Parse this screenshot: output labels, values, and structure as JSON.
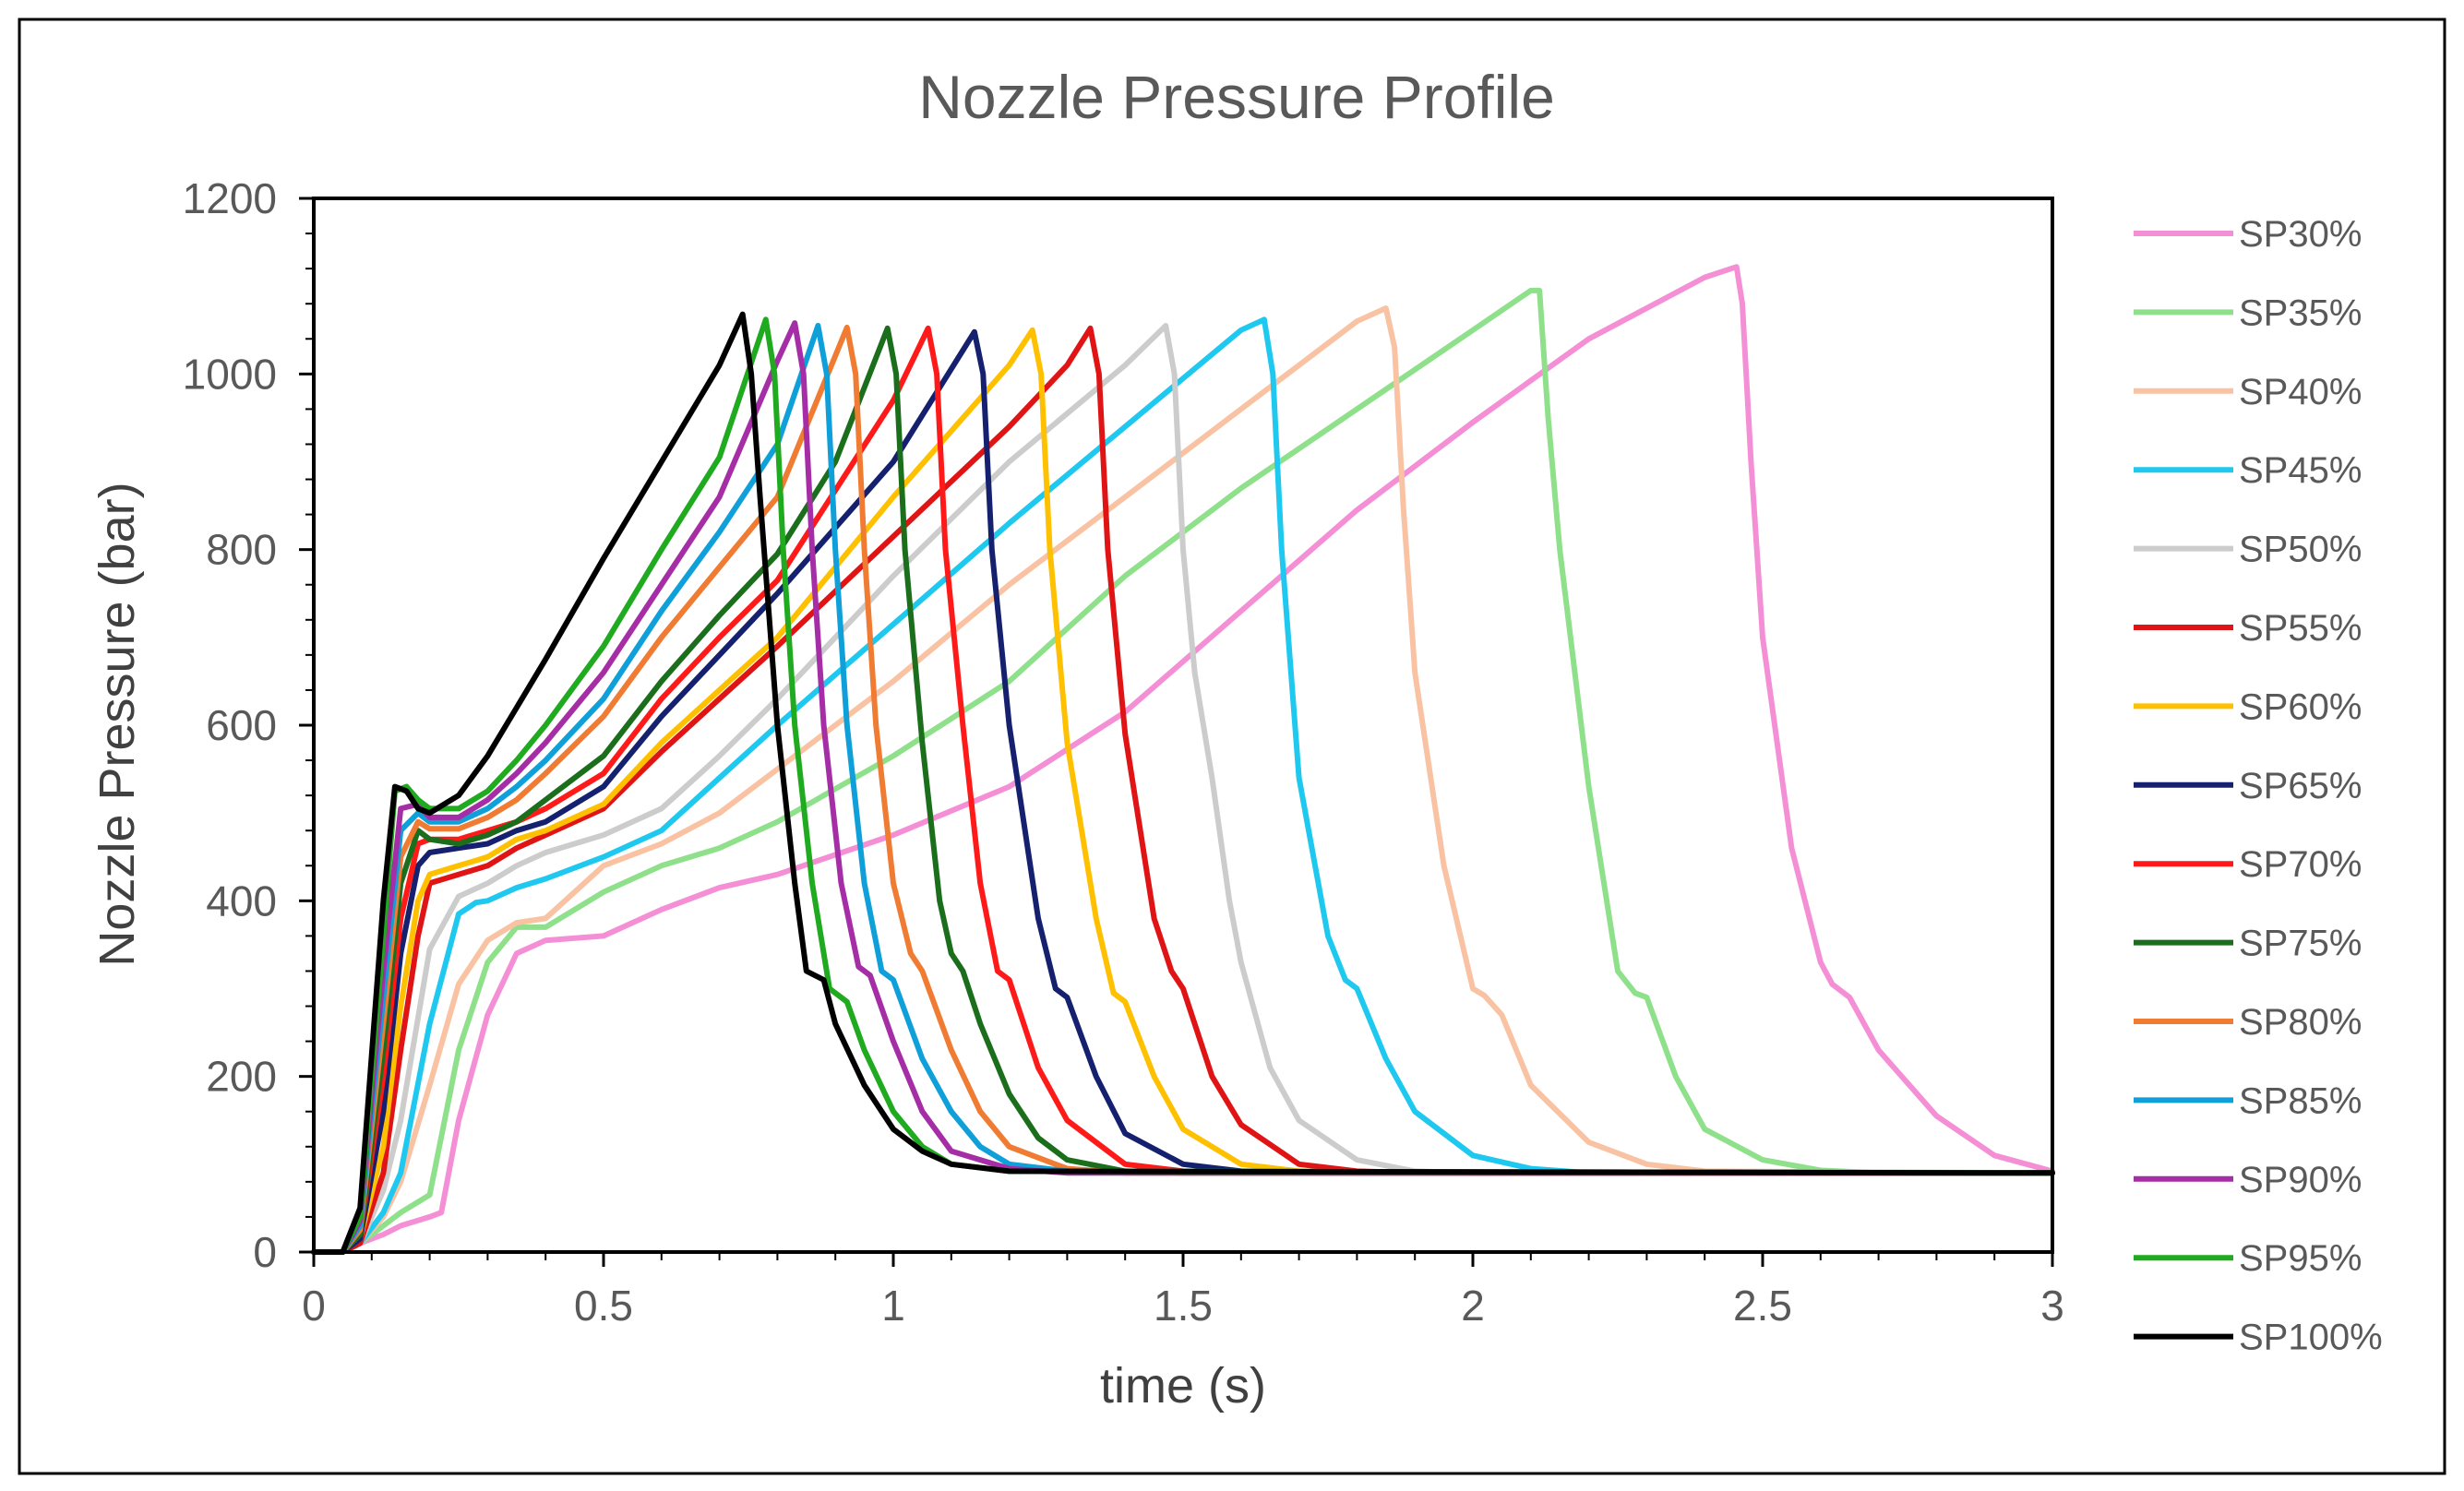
{
  "chart_data": {
    "type": "line",
    "title": "Nozzle Pressure Profile",
    "xlabel": "time (s)",
    "ylabel": "Nozzle Pressure (bar)",
    "xlim": [
      0,
      3
    ],
    "ylim": [
      0,
      1200
    ],
    "xticks": [
      0,
      0.5,
      1,
      1.5,
      2,
      2.5,
      3
    ],
    "xtick_labels": [
      "0",
      "0.5",
      "1",
      "1.5",
      "2",
      "2.5",
      "3"
    ],
    "yticks": [
      0,
      200,
      400,
      600,
      800,
      1000,
      1200
    ],
    "ytick_labels": [
      "0",
      "200",
      "400",
      "600",
      "800",
      "1000",
      "1200"
    ],
    "grid": false,
    "legend_position": "right",
    "series": [
      {
        "name": "SP30%",
        "color": "#f48fd6",
        "x": [
          0.0,
          0.05,
          0.08,
          0.12,
          0.15,
          0.2,
          0.22,
          0.25,
          0.3,
          0.35,
          0.4,
          0.5,
          0.6,
          0.7,
          0.8,
          1.0,
          1.2,
          1.4,
          1.6,
          1.8,
          2.0,
          2.2,
          2.4,
          2.455,
          2.465,
          2.48,
          2.5,
          2.55,
          2.6,
          2.62,
          2.65,
          2.7,
          2.8,
          2.9,
          3.0
        ],
        "y": [
          0,
          0,
          10,
          20,
          30,
          40,
          45,
          150,
          270,
          340,
          355,
          360,
          390,
          415,
          430,
          475,
          530,
          615,
          730,
          845,
          945,
          1040,
          1110,
          1122,
          1080,
          900,
          700,
          460,
          330,
          305,
          290,
          230,
          155,
          110,
          92
        ]
      },
      {
        "name": "SP35%",
        "color": "#8fe08a",
        "x": [
          0.0,
          0.05,
          0.08,
          0.12,
          0.15,
          0.2,
          0.25,
          0.3,
          0.35,
          0.4,
          0.5,
          0.6,
          0.7,
          0.8,
          1.0,
          1.2,
          1.4,
          1.6,
          1.8,
          2.0,
          2.1,
          2.115,
          2.13,
          2.15,
          2.2,
          2.25,
          2.28,
          2.3,
          2.35,
          2.4,
          2.5,
          2.6,
          2.7,
          3.0
        ],
        "y": [
          0,
          0,
          10,
          30,
          45,
          65,
          230,
          330,
          370,
          370,
          410,
          440,
          460,
          490,
          565,
          650,
          770,
          870,
          960,
          1050,
          1095,
          1095,
          950,
          800,
          530,
          320,
          295,
          290,
          200,
          140,
          105,
          93,
          90,
          90
        ]
      },
      {
        "name": "SP40%",
        "color": "#f9c3a3",
        "x": [
          0.0,
          0.05,
          0.08,
          0.12,
          0.15,
          0.2,
          0.25,
          0.3,
          0.35,
          0.4,
          0.5,
          0.6,
          0.7,
          0.8,
          1.0,
          1.2,
          1.4,
          1.6,
          1.8,
          1.85,
          1.865,
          1.88,
          1.9,
          1.95,
          2.0,
          2.02,
          2.05,
          2.1,
          2.2,
          2.3,
          2.4,
          3.0
        ],
        "y": [
          0,
          0,
          10,
          40,
          80,
          190,
          305,
          355,
          375,
          380,
          440,
          465,
          500,
          550,
          650,
          760,
          860,
          960,
          1060,
          1075,
          1030,
          850,
          660,
          440,
          300,
          292,
          270,
          190,
          125,
          100,
          92,
          90
        ]
      },
      {
        "name": "SP45%",
        "color": "#1ec8ef",
        "x": [
          0.0,
          0.05,
          0.08,
          0.12,
          0.15,
          0.2,
          0.25,
          0.28,
          0.3,
          0.35,
          0.4,
          0.5,
          0.6,
          0.7,
          0.8,
          1.0,
          1.2,
          1.4,
          1.6,
          1.64,
          1.655,
          1.67,
          1.7,
          1.75,
          1.78,
          1.8,
          1.85,
          1.9,
          2.0,
          2.1,
          2.2,
          3.0
        ],
        "y": [
          0,
          0,
          10,
          45,
          90,
          260,
          385,
          398,
          400,
          415,
          425,
          450,
          480,
          540,
          600,
          715,
          830,
          940,
          1050,
          1062,
          1000,
          800,
          540,
          360,
          310,
          300,
          220,
          160,
          110,
          95,
          90,
          90
        ]
      },
      {
        "name": "SP50%",
        "color": "#cccccc",
        "x": [
          0.0,
          0.05,
          0.08,
          0.12,
          0.15,
          0.2,
          0.25,
          0.3,
          0.35,
          0.4,
          0.5,
          0.6,
          0.7,
          0.8,
          1.0,
          1.2,
          1.4,
          1.47,
          1.485,
          1.5,
          1.52,
          1.55,
          1.58,
          1.6,
          1.65,
          1.7,
          1.8,
          1.9,
          2.0,
          3.0
        ],
        "y": [
          0,
          0,
          10,
          70,
          150,
          345,
          405,
          420,
          440,
          455,
          475,
          505,
          565,
          630,
          770,
          900,
          1010,
          1055,
          1000,
          800,
          660,
          540,
          400,
          330,
          210,
          150,
          105,
          92,
          90,
          90
        ]
      },
      {
        "name": "SP55%",
        "color": "#e01414",
        "x": [
          0.0,
          0.05,
          0.08,
          0.12,
          0.15,
          0.18,
          0.2,
          0.25,
          0.3,
          0.35,
          0.4,
          0.5,
          0.6,
          0.7,
          0.8,
          1.0,
          1.2,
          1.3,
          1.34,
          1.355,
          1.37,
          1.4,
          1.45,
          1.48,
          1.5,
          1.55,
          1.6,
          1.7,
          1.8,
          1.9,
          3.0
        ],
        "y": [
          0,
          0,
          10,
          90,
          230,
          360,
          420,
          430,
          440,
          460,
          475,
          505,
          570,
          630,
          690,
          815,
          940,
          1010,
          1052,
          1000,
          800,
          590,
          380,
          320,
          300,
          200,
          145,
          100,
          92,
          90,
          90
        ]
      },
      {
        "name": "SP60%",
        "color": "#ffc000",
        "x": [
          0.0,
          0.05,
          0.08,
          0.12,
          0.15,
          0.18,
          0.2,
          0.25,
          0.3,
          0.35,
          0.4,
          0.5,
          0.6,
          0.7,
          0.8,
          1.0,
          1.2,
          1.24,
          1.255,
          1.27,
          1.3,
          1.35,
          1.38,
          1.4,
          1.45,
          1.5,
          1.6,
          1.7,
          1.8,
          3.0
        ],
        "y": [
          0,
          0,
          15,
          120,
          280,
          400,
          430,
          440,
          450,
          470,
          480,
          510,
          580,
          640,
          700,
          860,
          1010,
          1050,
          1000,
          800,
          580,
          380,
          295,
          285,
          200,
          140,
          100,
          92,
          90,
          90
        ]
      },
      {
        "name": "SP65%",
        "color": "#15206e",
        "x": [
          0.0,
          0.05,
          0.08,
          0.12,
          0.15,
          0.18,
          0.2,
          0.25,
          0.3,
          0.35,
          0.4,
          0.5,
          0.6,
          0.7,
          0.8,
          1.0,
          1.14,
          1.155,
          1.17,
          1.2,
          1.25,
          1.28,
          1.3,
          1.35,
          1.4,
          1.5,
          1.6,
          1.7,
          3.0
        ],
        "y": [
          0,
          0,
          15,
          160,
          340,
          440,
          455,
          460,
          465,
          480,
          490,
          530,
          610,
          680,
          750,
          900,
          1048,
          1000,
          800,
          600,
          380,
          300,
          290,
          200,
          135,
          100,
          92,
          90,
          90
        ]
      },
      {
        "name": "SP70%",
        "color": "#ff1a1a",
        "x": [
          0.0,
          0.05,
          0.08,
          0.12,
          0.15,
          0.18,
          0.2,
          0.25,
          0.3,
          0.35,
          0.4,
          0.5,
          0.6,
          0.7,
          0.8,
          1.0,
          1.06,
          1.075,
          1.09,
          1.12,
          1.15,
          1.18,
          1.2,
          1.25,
          1.3,
          1.4,
          1.5,
          1.6,
          3.0
        ],
        "y": [
          0,
          0,
          20,
          200,
          380,
          465,
          470,
          470,
          480,
          490,
          505,
          545,
          630,
          700,
          765,
          970,
          1052,
          1000,
          800,
          600,
          420,
          320,
          310,
          210,
          150,
          100,
          92,
          90,
          90
        ]
      },
      {
        "name": "SP75%",
        "color": "#1b6e1b",
        "x": [
          0.0,
          0.05,
          0.08,
          0.12,
          0.15,
          0.18,
          0.2,
          0.25,
          0.3,
          0.35,
          0.4,
          0.5,
          0.6,
          0.7,
          0.8,
          0.9,
          0.99,
          1.005,
          1.02,
          1.05,
          1.08,
          1.1,
          1.12,
          1.15,
          1.2,
          1.25,
          1.3,
          1.4,
          1.5,
          3.0
        ],
        "y": [
          0,
          0,
          20,
          230,
          420,
          480,
          470,
          465,
          475,
          490,
          515,
          565,
          650,
          725,
          795,
          900,
          1052,
          1000,
          800,
          580,
          400,
          340,
          320,
          260,
          180,
          130,
          105,
          92,
          90,
          90
        ]
      },
      {
        "name": "SP80%",
        "color": "#f07b32",
        "x": [
          0.0,
          0.05,
          0.08,
          0.12,
          0.15,
          0.18,
          0.2,
          0.25,
          0.3,
          0.35,
          0.4,
          0.5,
          0.6,
          0.7,
          0.8,
          0.92,
          0.935,
          0.95,
          0.97,
          1.0,
          1.03,
          1.05,
          1.1,
          1.15,
          1.2,
          1.3,
          1.4,
          3.0
        ],
        "y": [
          0,
          0,
          25,
          260,
          450,
          490,
          482,
          482,
          495,
          515,
          545,
          610,
          700,
          780,
          860,
          1053,
          1000,
          800,
          600,
          420,
          340,
          320,
          230,
          160,
          120,
          95,
          90,
          90
        ]
      },
      {
        "name": "SP85%",
        "color": "#0f9fd9",
        "x": [
          0.0,
          0.05,
          0.08,
          0.12,
          0.15,
          0.18,
          0.2,
          0.25,
          0.3,
          0.35,
          0.4,
          0.5,
          0.6,
          0.7,
          0.8,
          0.87,
          0.885,
          0.9,
          0.92,
          0.95,
          0.98,
          1.0,
          1.05,
          1.1,
          1.15,
          1.2,
          1.3,
          3.0
        ],
        "y": [
          0,
          0,
          30,
          290,
          480,
          500,
          490,
          490,
          505,
          530,
          560,
          630,
          730,
          820,
          920,
          1055,
          1000,
          800,
          600,
          420,
          320,
          310,
          220,
          160,
          120,
          100,
          92,
          90
        ]
      },
      {
        "name": "SP90%",
        "color": "#a52ea6",
        "x": [
          0.0,
          0.05,
          0.08,
          0.12,
          0.15,
          0.18,
          0.2,
          0.25,
          0.3,
          0.35,
          0.4,
          0.5,
          0.6,
          0.7,
          0.8,
          0.83,
          0.845,
          0.86,
          0.88,
          0.91,
          0.94,
          0.96,
          1.0,
          1.05,
          1.1,
          1.2,
          1.3,
          3.0
        ],
        "y": [
          0,
          0,
          35,
          320,
          505,
          510,
          495,
          495,
          515,
          545,
          580,
          660,
          760,
          860,
          1015,
          1058,
          1000,
          800,
          600,
          420,
          325,
          315,
          240,
          160,
          115,
          95,
          90,
          90
        ]
      },
      {
        "name": "SP95%",
        "color": "#1faa1f",
        "x": [
          0.0,
          0.05,
          0.08,
          0.12,
          0.14,
          0.16,
          0.18,
          0.2,
          0.25,
          0.3,
          0.35,
          0.4,
          0.5,
          0.6,
          0.7,
          0.78,
          0.795,
          0.81,
          0.83,
          0.86,
          0.89,
          0.92,
          0.95,
          1.0,
          1.05,
          1.1,
          1.2,
          3.0
        ],
        "y": [
          0,
          0,
          40,
          360,
          525,
          530,
          515,
          505,
          505,
          525,
          560,
          600,
          690,
          800,
          905,
          1062,
          1000,
          800,
          600,
          420,
          300,
          285,
          230,
          160,
          120,
          100,
          92,
          90
        ]
      },
      {
        "name": "SP100%",
        "color": "#000000",
        "x": [
          0.0,
          0.05,
          0.08,
          0.12,
          0.14,
          0.16,
          0.18,
          0.2,
          0.25,
          0.3,
          0.35,
          0.4,
          0.5,
          0.6,
          0.7,
          0.74,
          0.755,
          0.77,
          0.8,
          0.83,
          0.85,
          0.88,
          0.9,
          0.95,
          1.0,
          1.05,
          1.1,
          1.2,
          3.0
        ],
        "y": [
          0,
          0,
          50,
          400,
          530,
          525,
          505,
          500,
          520,
          565,
          620,
          675,
          790,
          900,
          1010,
          1068,
          1000,
          860,
          600,
          420,
          320,
          310,
          260,
          190,
          140,
          115,
          100,
          92,
          90
        ]
      }
    ]
  }
}
